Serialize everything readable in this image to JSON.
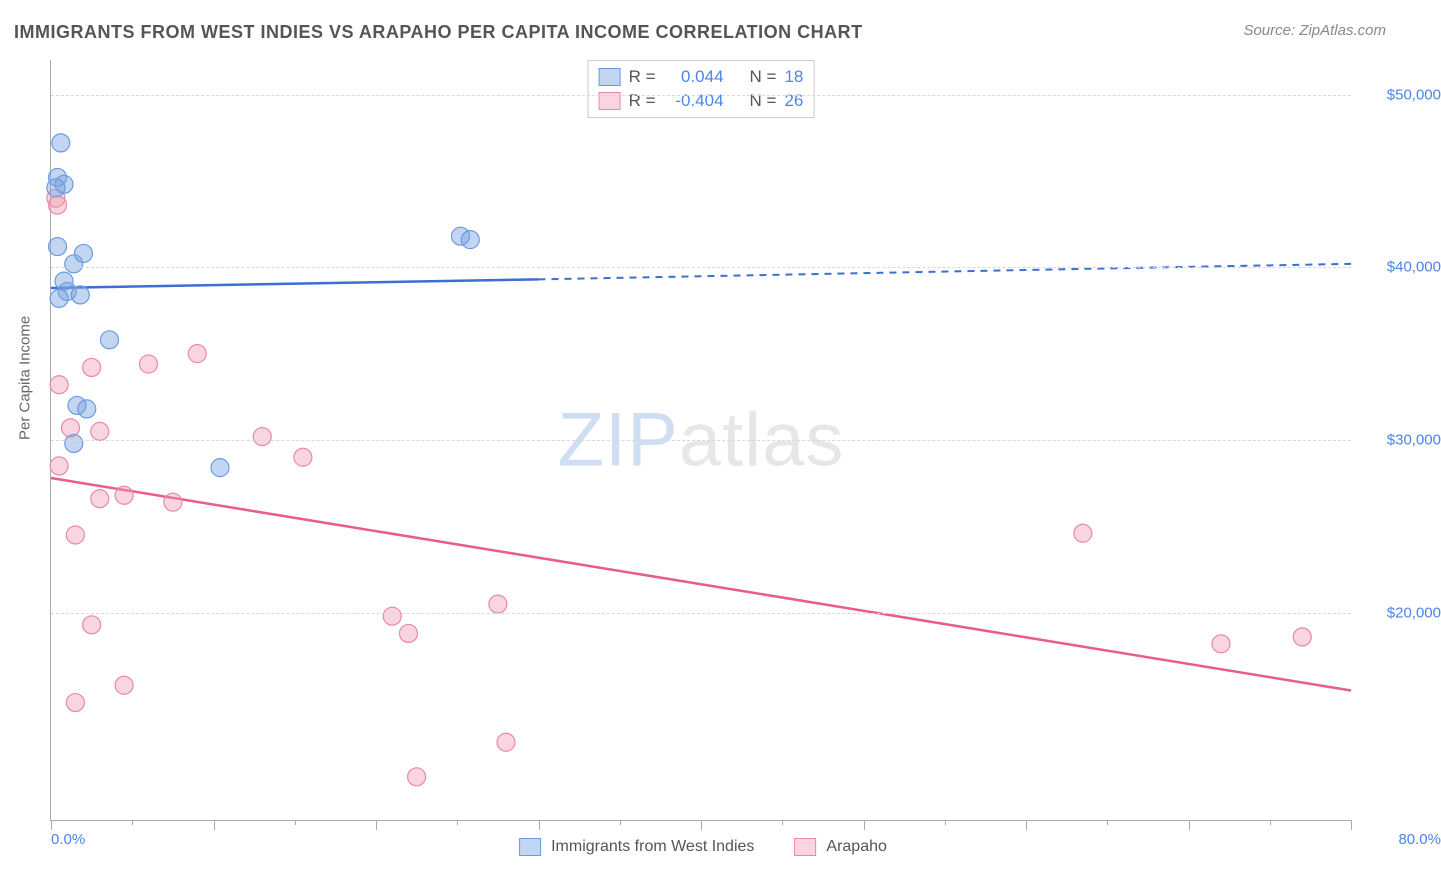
{
  "title": "IMMIGRANTS FROM WEST INDIES VS ARAPAHO PER CAPITA INCOME CORRELATION CHART",
  "source_label": "Source: ZipAtlas.com",
  "watermark_prefix": "ZIP",
  "watermark_suffix": "atlas",
  "ylabel": "Per Capita Income",
  "chart": {
    "type": "scatter",
    "x_min": 0.0,
    "x_max": 80.0,
    "x_min_label": "0.0%",
    "x_max_label": "80.0%",
    "y_min": 8000,
    "y_max": 52000,
    "y_ticks": [
      20000,
      30000,
      40000,
      50000
    ],
    "y_tick_labels": [
      "$20,000",
      "$30,000",
      "$40,000",
      "$50,000"
    ],
    "x_tick_positions": [
      0,
      5,
      10,
      15,
      20,
      25,
      30,
      35,
      40,
      45,
      50,
      55,
      60,
      65,
      70,
      75,
      80
    ],
    "x_major_ticks": [
      0,
      10,
      20,
      30,
      40,
      50,
      60,
      70,
      80
    ],
    "background_color": "#ffffff",
    "grid_color": "#d8d8d8",
    "axis_color": "#aaaaaa",
    "label_fontsize": 15,
    "title_fontsize": 18,
    "marker_radius": 9,
    "series": {
      "blue": {
        "label": "Immigrants from West Indies",
        "fill": "rgba(120,165,225,0.45)",
        "stroke": "#6a9be0",
        "line_color": "#3b6fd1",
        "R_label": "R =",
        "R_value": "0.044",
        "N_label": "N =",
        "N_value": "18",
        "trend": {
          "x1": 0,
          "y1": 38800,
          "x2_solid": 30,
          "y2_solid": 39300,
          "x2": 80,
          "y2": 40200
        },
        "points": [
          {
            "x": 0.6,
            "y": 47200
          },
          {
            "x": 0.4,
            "y": 45200
          },
          {
            "x": 0.8,
            "y": 44800
          },
          {
            "x": 0.4,
            "y": 41200
          },
          {
            "x": 1.4,
            "y": 40200
          },
          {
            "x": 1.0,
            "y": 38600
          },
          {
            "x": 1.8,
            "y": 38400
          },
          {
            "x": 0.5,
            "y": 38200
          },
          {
            "x": 3.6,
            "y": 35800
          },
          {
            "x": 1.6,
            "y": 32000
          },
          {
            "x": 2.2,
            "y": 31800
          },
          {
            "x": 10.4,
            "y": 28400
          },
          {
            "x": 1.4,
            "y": 29800
          },
          {
            "x": 25.2,
            "y": 41800
          },
          {
            "x": 25.8,
            "y": 41600
          },
          {
            "x": 0.3,
            "y": 44600
          },
          {
            "x": 2.0,
            "y": 40800
          },
          {
            "x": 0.8,
            "y": 39200
          }
        ]
      },
      "pink": {
        "label": "Arapaho",
        "fill": "rgba(240,150,175,0.40)",
        "stroke": "#e88aa5",
        "line_color": "#e85d8a",
        "R_label": "R =",
        "R_value": "-0.404",
        "N_label": "N =",
        "N_value": "26",
        "trend": {
          "x1": 0,
          "y1": 27800,
          "x2": 80,
          "y2": 15500
        },
        "points": [
          {
            "x": 0.3,
            "y": 44000
          },
          {
            "x": 0.4,
            "y": 43600
          },
          {
            "x": 9.0,
            "y": 35000
          },
          {
            "x": 6.0,
            "y": 34400
          },
          {
            "x": 2.5,
            "y": 34200
          },
          {
            "x": 0.5,
            "y": 33200
          },
          {
            "x": 1.2,
            "y": 30700
          },
          {
            "x": 3.0,
            "y": 30500
          },
          {
            "x": 13.0,
            "y": 30200
          },
          {
            "x": 0.5,
            "y": 28500
          },
          {
            "x": 15.5,
            "y": 29000
          },
          {
            "x": 3.0,
            "y": 26600
          },
          {
            "x": 4.5,
            "y": 26800
          },
          {
            "x": 7.5,
            "y": 26400
          },
          {
            "x": 1.5,
            "y": 24500
          },
          {
            "x": 63.5,
            "y": 24600
          },
          {
            "x": 2.5,
            "y": 19300
          },
          {
            "x": 21.0,
            "y": 19800
          },
          {
            "x": 27.5,
            "y": 20500
          },
          {
            "x": 22.0,
            "y": 18800
          },
          {
            "x": 4.5,
            "y": 15800
          },
          {
            "x": 1.5,
            "y": 14800
          },
          {
            "x": 28.0,
            "y": 12500
          },
          {
            "x": 22.5,
            "y": 10500
          },
          {
            "x": 72.0,
            "y": 18200
          },
          {
            "x": 77.0,
            "y": 18600
          }
        ]
      }
    }
  }
}
